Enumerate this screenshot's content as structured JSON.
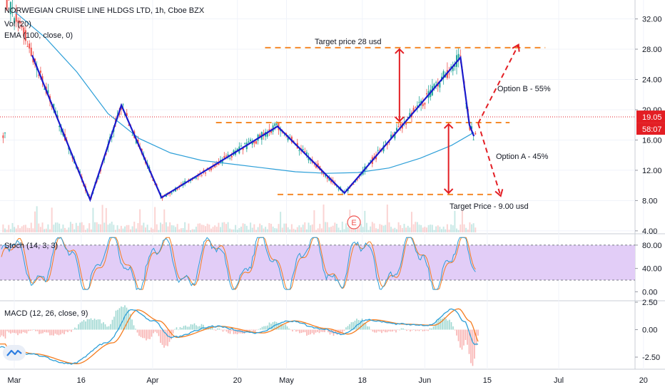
{
  "header": {
    "title": "NORWEGIAN CRUISE LINE HLDGS LTD, 1h, Cboe BZX",
    "vol": "Vol (20)",
    "ema": "EMA (100, close, 0)",
    "stoch": "Stoch (14, 3, 3)",
    "macd": "MACD (12, 26, close, 9)"
  },
  "annotations": {
    "target_up": "Target price 28 usd",
    "target_down": "Target Price - 9.00 usd",
    "option_b": "Option B - 55%",
    "option_a": "Option A - 45%",
    "earnings_marker": "E"
  },
  "badges": {
    "price": "19.05",
    "countdown": "58:07"
  },
  "colors": {
    "pattern_line": "#1a1acc",
    "target_dash": "#f58a2a",
    "arrow": "#e31e24",
    "ema": "#2d9fd8",
    "stoch_band": "#e2cdf7",
    "stoch_k": "#2d9fd8",
    "stoch_d": "#f57c1f",
    "macd_line": "#2d9fd8",
    "signal_line": "#f57c1f",
    "price_line": "#e31e24"
  },
  "chart_data": [
    {
      "type": "line",
      "title": "NORWEGIAN CRUISE LINE HLDGS LTD, 1h, Cboe BZX",
      "x_ticks": [
        "Mar",
        "16",
        "Apr",
        "20",
        "May",
        "18",
        "Jun",
        "15",
        "Jul",
        "20"
      ],
      "y_ticks": [
        4,
        8,
        12,
        16,
        20,
        24,
        28,
        32
      ],
      "y_tick_labels": [
        "4.00",
        "8.00",
        "12.00",
        "16.00",
        "20.00",
        "24.00",
        "28.00",
        "32.00"
      ],
      "ylim": [
        3.8,
        34.5
      ],
      "last_price": 19.05,
      "pattern_series": {
        "name": "",
        "points": [
          [
            "Mar 5",
            27.2
          ],
          [
            "Mar 18",
            8.1
          ],
          [
            "Mar 25",
            20.6
          ],
          [
            "Apr 3",
            8.4
          ],
          [
            "Apr 29",
            17.8
          ],
          [
            "May 14",
            9.0
          ],
          [
            "Jun 9",
            26.9
          ],
          [
            "Jun 11",
            18.0
          ],
          [
            "Jun 12",
            16.5
          ]
        ]
      },
      "ema_100": [
        [
          "Mar 1",
          33.0
        ],
        [
          "Mar 8",
          29.5
        ],
        [
          "Mar 15",
          25.0
        ],
        [
          "Mar 22",
          19.5
        ],
        [
          "Mar 29",
          16.2
        ],
        [
          "Apr 5",
          14.3
        ],
        [
          "Apr 12",
          13.3
        ],
        [
          "Apr 19",
          12.8
        ],
        [
          "Apr 26",
          12.3
        ],
        [
          "May 3",
          11.8
        ],
        [
          "May 10",
          11.6
        ],
        [
          "May 17",
          11.7
        ],
        [
          "May 24",
          12.3
        ],
        [
          "May 31",
          13.6
        ],
        [
          "Jun 7",
          15.3
        ],
        [
          "Jun 12",
          17.0
        ]
      ],
      "levels": {
        "target_up": 28.2,
        "neckline": 18.3,
        "target_down": 8.8
      },
      "scenarios": [
        {
          "label": "Option B - 55%",
          "from": [
            "Jun 12",
            18.2
          ],
          "to": [
            "Jun 22",
            28.6
          ]
        },
        {
          "label": "Option A - 45%",
          "from": [
            "Jun 12",
            18.2
          ],
          "to": [
            "Jun 18",
            8.6
          ]
        }
      ]
    },
    {
      "type": "line",
      "title": "Stoch (14, 3, 3)",
      "y_ticks": [
        0,
        40,
        80
      ],
      "y_tick_labels": [
        "0.00",
        "40.00",
        "80.00"
      ],
      "ylim": [
        -13,
        97
      ],
      "band": [
        20,
        80
      ]
    },
    {
      "type": "line",
      "title": "MACD (12, 26, close, 9)",
      "y_ticks": [
        -2.5,
        0,
        2.5
      ],
      "y_tick_labels": [
        "-2.50",
        "0.00",
        "2.50"
      ],
      "ylim": [
        -3.6,
        2.5
      ]
    }
  ]
}
